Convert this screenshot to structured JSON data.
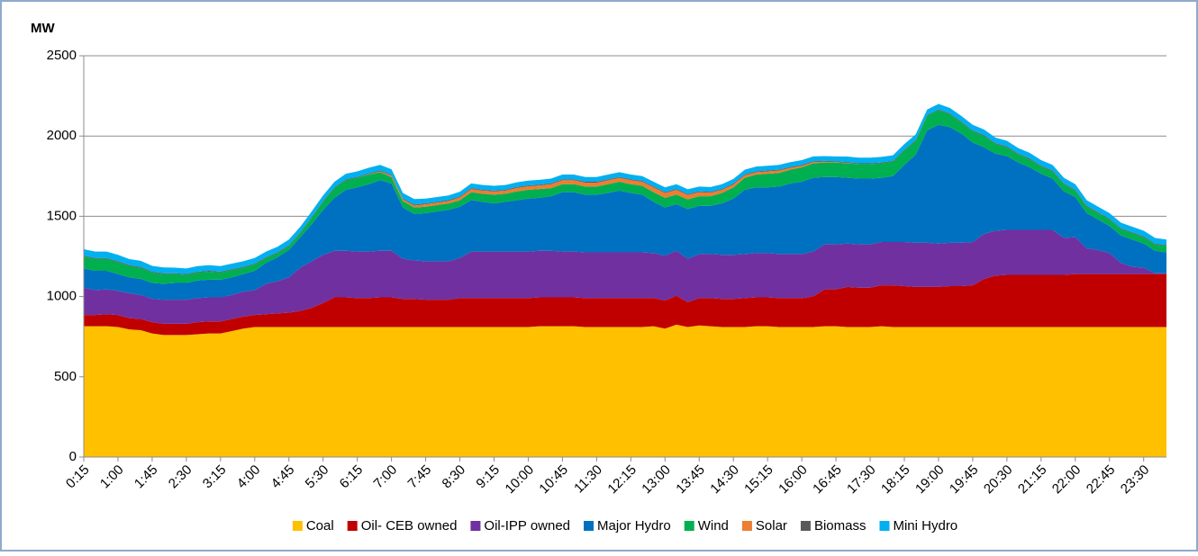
{
  "chart_data": {
    "type": "stacked_area",
    "y_label": "MW",
    "ylim": [
      0,
      2500
    ],
    "yticks": [
      0,
      500,
      1000,
      1500,
      2000,
      2500
    ],
    "grid": true,
    "legend": "bottom",
    "categories": [
      "0:15",
      null,
      null,
      "1:00",
      null,
      null,
      "1:45",
      null,
      null,
      "2:30",
      null,
      null,
      "3:15",
      null,
      null,
      "4:00",
      null,
      null,
      "4:45",
      null,
      null,
      "5:30",
      null,
      null,
      "6:15",
      null,
      null,
      "7:00",
      null,
      null,
      "7:45",
      null,
      null,
      "8:30",
      null,
      null,
      "9:15",
      null,
      null,
      "10:00",
      null,
      null,
      "10:45",
      null,
      null,
      "11:30",
      null,
      null,
      "12:15",
      null,
      null,
      "13:00",
      null,
      null,
      "13:45",
      null,
      null,
      "14:30",
      null,
      null,
      "15:15",
      null,
      null,
      "16:00",
      null,
      null,
      "16:45",
      null,
      null,
      "17:30",
      null,
      null,
      "18:15",
      null,
      null,
      "19:00",
      null,
      null,
      "19:45",
      null,
      null,
      "20:30",
      null,
      null,
      "21:15",
      null,
      null,
      "22:00",
      null,
      null,
      "22:45",
      null,
      null,
      "23:30",
      null,
      null
    ],
    "series": [
      {
        "name": "Coal",
        "color": "#ffc000",
        "values": [
          815,
          815,
          815,
          810,
          795,
          790,
          770,
          760,
          760,
          760,
          765,
          770,
          770,
          785,
          800,
          810,
          810,
          810,
          810,
          810,
          810,
          810,
          810,
          810,
          810,
          810,
          810,
          810,
          810,
          810,
          810,
          810,
          810,
          810,
          810,
          810,
          810,
          810,
          810,
          810,
          815,
          815,
          815,
          815,
          810,
          810,
          810,
          810,
          810,
          810,
          815,
          800,
          825,
          810,
          820,
          815,
          810,
          810,
          810,
          815,
          815,
          810,
          810,
          810,
          810,
          815,
          815,
          810,
          810,
          810,
          815,
          810,
          810,
          810,
          810,
          810,
          810,
          810,
          810,
          810,
          810,
          810,
          810,
          810,
          810,
          810,
          810,
          810,
          810,
          810,
          810,
          810,
          810,
          810,
          810,
          810
        ]
      },
      {
        "name": "Oil- CEB owned",
        "color": "#c00000",
        "values": [
          70,
          70,
          75,
          75,
          70,
          70,
          70,
          70,
          70,
          70,
          75,
          75,
          75,
          75,
          75,
          75,
          80,
          85,
          90,
          100,
          120,
          150,
          185,
          185,
          180,
          180,
          185,
          185,
          175,
          175,
          170,
          170,
          170,
          180,
          180,
          180,
          180,
          180,
          180,
          180,
          180,
          180,
          180,
          180,
          180,
          180,
          180,
          180,
          180,
          180,
          175,
          175,
          180,
          155,
          170,
          175,
          175,
          175,
          180,
          180,
          180,
          180,
          180,
          180,
          190,
          230,
          230,
          250,
          245,
          245,
          255,
          260,
          255,
          250,
          250,
          250,
          255,
          255,
          260,
          300,
          320,
          325,
          325,
          325,
          325,
          325,
          325,
          330,
          330,
          330,
          330,
          330,
          330,
          330,
          330,
          330
        ]
      },
      {
        "name": "Oil-IPP owned",
        "color": "#7030a0",
        "values": [
          170,
          155,
          155,
          150,
          155,
          150,
          145,
          150,
          150,
          150,
          150,
          150,
          150,
          150,
          155,
          155,
          190,
          200,
          220,
          270,
          290,
          300,
          290,
          290,
          290,
          290,
          290,
          290,
          250,
          240,
          240,
          240,
          240,
          250,
          290,
          290,
          290,
          290,
          290,
          290,
          290,
          290,
          285,
          285,
          285,
          285,
          285,
          285,
          285,
          285,
          280,
          280,
          280,
          270,
          275,
          275,
          275,
          275,
          275,
          275,
          275,
          275,
          275,
          275,
          280,
          280,
          280,
          270,
          270,
          270,
          270,
          270,
          275,
          275,
          275,
          270,
          270,
          270,
          270,
          280,
          280,
          280,
          280,
          280,
          280,
          280,
          230,
          230,
          160,
          150,
          130,
          70,
          45,
          40,
          5,
          5
        ]
      },
      {
        "name": "Major Hydro",
        "color": "#0070c0",
        "values": [
          120,
          120,
          115,
          105,
          100,
          100,
          100,
          100,
          105,
          105,
          110,
          110,
          110,
          110,
          110,
          120,
          130,
          150,
          170,
          190,
          230,
          280,
          330,
          380,
          400,
          420,
          440,
          420,
          320,
          290,
          300,
          310,
          320,
          320,
          320,
          310,
          300,
          310,
          320,
          330,
          330,
          340,
          370,
          370,
          360,
          360,
          370,
          385,
          370,
          360,
          320,
          300,
          290,
          310,
          300,
          300,
          320,
          350,
          400,
          410,
          410,
          420,
          440,
          450,
          460,
          420,
          420,
          410,
          410,
          410,
          400,
          410,
          480,
          550,
          700,
          740,
          720,
          680,
          620,
          540,
          480,
          460,
          420,
          390,
          350,
          320,
          290,
          250,
          220,
          190,
          170,
          170,
          170,
          150,
          140,
          130
        ]
      },
      {
        "name": "Wind",
        "color": "#00b050",
        "values": [
          75,
          75,
          75,
          75,
          70,
          70,
          65,
          60,
          55,
          50,
          50,
          50,
          45,
          45,
          40,
          40,
          30,
          25,
          25,
          25,
          40,
          50,
          60,
          60,
          60,
          60,
          50,
          40,
          40,
          40,
          40,
          40,
          40,
          40,
          50,
          50,
          55,
          50,
          55,
          55,
          55,
          50,
          50,
          50,
          50,
          50,
          55,
          55,
          55,
          55,
          60,
          60,
          60,
          60,
          60,
          60,
          65,
          70,
          75,
          80,
          85,
          85,
          85,
          90,
          90,
          90,
          90,
          90,
          90,
          90,
          90,
          90,
          90,
          85,
          90,
          90,
          80,
          70,
          70,
          70,
          60,
          55,
          50,
          50,
          45,
          45,
          45,
          40,
          40,
          40,
          40,
          40,
          40,
          40,
          40,
          40
        ]
      },
      {
        "name": "Solar",
        "color": "#ed7d31",
        "values": [
          0,
          0,
          0,
          0,
          0,
          0,
          0,
          0,
          0,
          0,
          0,
          0,
          0,
          0,
          0,
          0,
          0,
          0,
          0,
          0,
          0,
          0,
          0,
          0,
          0,
          2,
          5,
          8,
          10,
          12,
          15,
          15,
          15,
          18,
          20,
          20,
          20,
          20,
          22,
          22,
          22,
          25,
          25,
          25,
          25,
          25,
          25,
          25,
          25,
          25,
          30,
          30,
          30,
          28,
          25,
          22,
          20,
          18,
          15,
          15,
          15,
          15,
          12,
          10,
          8,
          5,
          3,
          2,
          0,
          0,
          0,
          0,
          0,
          0,
          0,
          0,
          0,
          0,
          0,
          0,
          0,
          0,
          0,
          0,
          0,
          0,
          0,
          0,
          0,
          0,
          0,
          0,
          0,
          0,
          0,
          0
        ]
      },
      {
        "name": "Biomass",
        "color": "#595959",
        "values": [
          5,
          5,
          5,
          5,
          5,
          5,
          5,
          5,
          5,
          5,
          5,
          5,
          5,
          5,
          5,
          5,
          5,
          5,
          5,
          5,
          5,
          5,
          5,
          5,
          5,
          5,
          5,
          5,
          5,
          5,
          5,
          5,
          5,
          5,
          5,
          5,
          5,
          5,
          5,
          5,
          5,
          5,
          5,
          5,
          5,
          5,
          5,
          5,
          5,
          5,
          5,
          5,
          5,
          5,
          5,
          5,
          5,
          5,
          5,
          5,
          5,
          5,
          5,
          5,
          5,
          5,
          5,
          5,
          5,
          5,
          5,
          5,
          5,
          5,
          5,
          5,
          5,
          5,
          5,
          5,
          5,
          5,
          5,
          5,
          5,
          5,
          5,
          5,
          5,
          5,
          5,
          5,
          5,
          5,
          5,
          5
        ]
      },
      {
        "name": "Mini Hydro",
        "color": "#00b0f0",
        "values": [
          40,
          40,
          40,
          40,
          38,
          38,
          36,
          36,
          35,
          35,
          35,
          35,
          35,
          35,
          35,
          35,
          35,
          35,
          35,
          35,
          35,
          35,
          35,
          35,
          35,
          35,
          35,
          35,
          35,
          35,
          30,
          30,
          30,
          30,
          30,
          30,
          30,
          30,
          30,
          30,
          30,
          30,
          30,
          30,
          30,
          30,
          30,
          30,
          30,
          30,
          30,
          30,
          30,
          30,
          30,
          30,
          30,
          30,
          30,
          30,
          30,
          30,
          30,
          30,
          30,
          30,
          30,
          35,
          35,
          35,
          35,
          35,
          35,
          35,
          35,
          35,
          35,
          35,
          35,
          35,
          35,
          35,
          35,
          35,
          35,
          35,
          35,
          35,
          35,
          35,
          35,
          35,
          35,
          35,
          35,
          35
        ]
      }
    ]
  }
}
